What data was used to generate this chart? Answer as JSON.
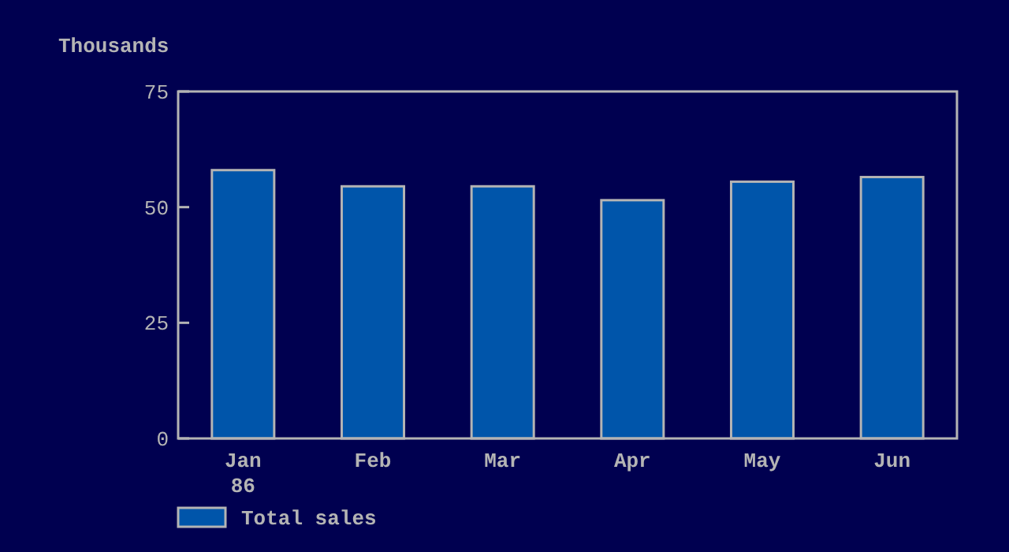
{
  "chart_data": {
    "type": "bar",
    "ylabel": "Thousands",
    "categories": [
      "Jan\n86",
      "Feb",
      "Mar",
      "Apr",
      "May",
      "Jun"
    ],
    "series": [
      {
        "name": "Total sales",
        "color": "#0055aa",
        "values": [
          58,
          54.5,
          54.5,
          51.5,
          55.5,
          56.5
        ]
      }
    ],
    "ylim": [
      0,
      75
    ],
    "yticks": [
      0,
      25,
      50,
      75
    ],
    "grid": false,
    "legend": "bottom left"
  }
}
